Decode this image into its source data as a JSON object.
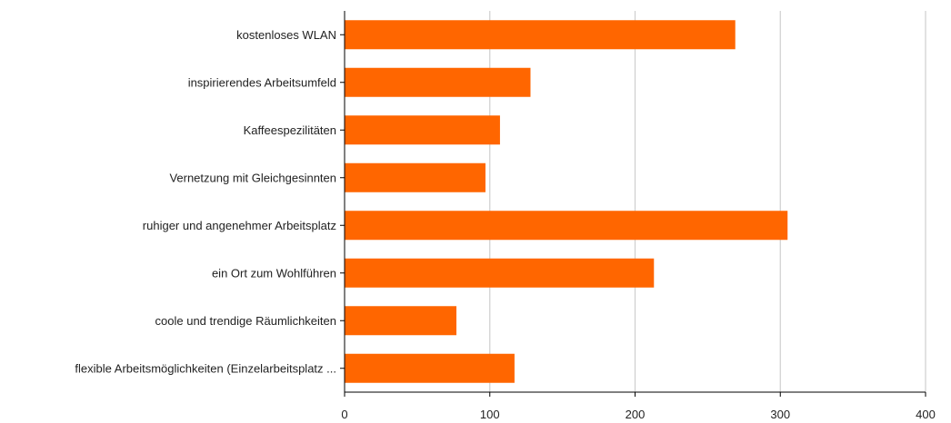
{
  "chart_data": {
    "type": "bar",
    "orientation": "horizontal",
    "categories": [
      "kostenloses WLAN",
      "inspirierendes Arbeitsumfeld",
      "Kaffeespezilitäten",
      "Vernetzung mit Gleichgesinnten",
      "ruhiger und angenehmer Arbeitsplatz",
      "ein Ort zum Wohlführen",
      "coole und trendige Räumlichkeiten",
      "flexible Arbeitsmöglichkeiten (Einzelarbeitsplatz ..."
    ],
    "values": [
      269,
      128,
      107,
      97,
      305,
      213,
      77,
      117
    ],
    "xlim": [
      0,
      400
    ],
    "xticks": [
      0,
      100,
      200,
      300,
      400
    ],
    "grid": true,
    "bar_color": "#ff6600",
    "title": "",
    "xlabel": "",
    "ylabel": ""
  }
}
